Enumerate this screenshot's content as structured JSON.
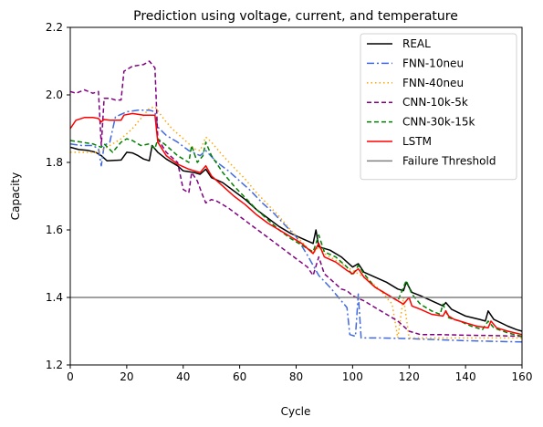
{
  "chart_data": {
    "type": "line",
    "title": "Prediction using voltage, current, and temperature",
    "xlabel": "Cycle",
    "ylabel": "Capacity",
    "xlim": [
      0,
      160
    ],
    "ylim": [
      1.2,
      2.2
    ],
    "xticks": [
      0,
      20,
      40,
      60,
      80,
      100,
      120,
      140,
      160
    ],
    "yticks": [
      1.2,
      1.4,
      1.6,
      1.8,
      2.0,
      2.2
    ],
    "grid": false,
    "legend_position": "top-right",
    "series": [
      {
        "name": "REAL",
        "color": "#000000",
        "dash": "solid",
        "points": [
          [
            0,
            1.845
          ],
          [
            3,
            1.838
          ],
          [
            6,
            1.836
          ],
          [
            9,
            1.83
          ],
          [
            11,
            1.82
          ],
          [
            13,
            1.805
          ],
          [
            18,
            1.807
          ],
          [
            20,
            1.83
          ],
          [
            22,
            1.828
          ],
          [
            24,
            1.82
          ],
          [
            26,
            1.81
          ],
          [
            28,
            1.805
          ],
          [
            29,
            1.85
          ],
          [
            31,
            1.83
          ],
          [
            34,
            1.81
          ],
          [
            38,
            1.79
          ],
          [
            40,
            1.775
          ],
          [
            44,
            1.77
          ],
          [
            46,
            1.765
          ],
          [
            48,
            1.78
          ],
          [
            50,
            1.755
          ],
          [
            54,
            1.74
          ],
          [
            58,
            1.715
          ],
          [
            62,
            1.69
          ],
          [
            66,
            1.66
          ],
          [
            70,
            1.635
          ],
          [
            74,
            1.61
          ],
          [
            78,
            1.59
          ],
          [
            82,
            1.575
          ],
          [
            86,
            1.56
          ],
          [
            87,
            1.6
          ],
          [
            88,
            1.55
          ],
          [
            92,
            1.54
          ],
          [
            96,
            1.52
          ],
          [
            100,
            1.49
          ],
          [
            102,
            1.5
          ],
          [
            104,
            1.475
          ],
          [
            108,
            1.46
          ],
          [
            112,
            1.445
          ],
          [
            116,
            1.425
          ],
          [
            118,
            1.42
          ],
          [
            119,
            1.445
          ],
          [
            121,
            1.415
          ],
          [
            124,
            1.405
          ],
          [
            128,
            1.39
          ],
          [
            132,
            1.375
          ],
          [
            133,
            1.385
          ],
          [
            135,
            1.365
          ],
          [
            140,
            1.345
          ],
          [
            145,
            1.335
          ],
          [
            147,
            1.33
          ],
          [
            148,
            1.36
          ],
          [
            150,
            1.335
          ],
          [
            155,
            1.315
          ],
          [
            158,
            1.305
          ],
          [
            160,
            1.3
          ]
        ]
      },
      {
        "name": "FNN-10neu",
        "color": "#4169e1",
        "dash": "dashdot",
        "points": [
          [
            0,
            1.855
          ],
          [
            4,
            1.85
          ],
          [
            8,
            1.85
          ],
          [
            10,
            1.84
          ],
          [
            11,
            1.79
          ],
          [
            12,
            1.85
          ],
          [
            14,
            1.86
          ],
          [
            16,
            1.935
          ],
          [
            20,
            1.95
          ],
          [
            24,
            1.955
          ],
          [
            28,
            1.955
          ],
          [
            30,
            1.95
          ],
          [
            31,
            1.905
          ],
          [
            34,
            1.88
          ],
          [
            38,
            1.86
          ],
          [
            42,
            1.835
          ],
          [
            46,
            1.82
          ],
          [
            48,
            1.835
          ],
          [
            52,
            1.8
          ],
          [
            56,
            1.775
          ],
          [
            60,
            1.745
          ],
          [
            64,
            1.715
          ],
          [
            68,
            1.68
          ],
          [
            72,
            1.65
          ],
          [
            76,
            1.615
          ],
          [
            80,
            1.58
          ],
          [
            84,
            1.525
          ],
          [
            88,
            1.465
          ],
          [
            92,
            1.43
          ],
          [
            96,
            1.39
          ],
          [
            98,
            1.37
          ],
          [
            99,
            1.29
          ],
          [
            101,
            1.285
          ],
          [
            102,
            1.41
          ],
          [
            103,
            1.28
          ],
          [
            110,
            1.28
          ],
          [
            120,
            1.278
          ],
          [
            130,
            1.275
          ],
          [
            140,
            1.272
          ],
          [
            150,
            1.27
          ],
          [
            160,
            1.268
          ]
        ]
      },
      {
        "name": "FNN-40neu",
        "color": "#ffa500",
        "dash": "dotted",
        "points": [
          [
            0,
            1.83
          ],
          [
            5,
            1.83
          ],
          [
            10,
            1.83
          ],
          [
            14,
            1.85
          ],
          [
            18,
            1.87
          ],
          [
            22,
            1.9
          ],
          [
            26,
            1.94
          ],
          [
            28,
            1.96
          ],
          [
            30,
            1.965
          ],
          [
            33,
            1.93
          ],
          [
            36,
            1.9
          ],
          [
            40,
            1.87
          ],
          [
            44,
            1.84
          ],
          [
            46,
            1.835
          ],
          [
            48,
            1.875
          ],
          [
            50,
            1.86
          ],
          [
            54,
            1.82
          ],
          [
            58,
            1.785
          ],
          [
            62,
            1.75
          ],
          [
            66,
            1.71
          ],
          [
            70,
            1.675
          ],
          [
            74,
            1.64
          ],
          [
            78,
            1.6
          ],
          [
            82,
            1.565
          ],
          [
            86,
            1.53
          ],
          [
            88,
            1.55
          ],
          [
            90,
            1.53
          ],
          [
            94,
            1.51
          ],
          [
            98,
            1.49
          ],
          [
            102,
            1.47
          ],
          [
            106,
            1.45
          ],
          [
            110,
            1.42
          ],
          [
            114,
            1.38
          ],
          [
            116,
            1.28
          ],
          [
            118,
            1.4
          ],
          [
            120,
            1.28
          ],
          [
            130,
            1.28
          ],
          [
            140,
            1.28
          ],
          [
            150,
            1.28
          ],
          [
            160,
            1.28
          ]
        ]
      },
      {
        "name": "CNN-10k-5k",
        "color": "#800080",
        "dash": "dashed",
        "points": [
          [
            0,
            2.01
          ],
          [
            2,
            2.005
          ],
          [
            5,
            2.015
          ],
          [
            8,
            2.005
          ],
          [
            10,
            2.01
          ],
          [
            11,
            1.85
          ],
          [
            12,
            1.99
          ],
          [
            14,
            1.99
          ],
          [
            16,
            1.985
          ],
          [
            18,
            1.985
          ],
          [
            19,
            2.07
          ],
          [
            22,
            2.085
          ],
          [
            26,
            2.09
          ],
          [
            28,
            2.1
          ],
          [
            30,
            2.08
          ],
          [
            31,
            1.87
          ],
          [
            34,
            1.83
          ],
          [
            38,
            1.8
          ],
          [
            40,
            1.72
          ],
          [
            42,
            1.71
          ],
          [
            43,
            1.77
          ],
          [
            45,
            1.745
          ],
          [
            47,
            1.7
          ],
          [
            48,
            1.68
          ],
          [
            50,
            1.69
          ],
          [
            52,
            1.685
          ],
          [
            56,
            1.665
          ],
          [
            60,
            1.64
          ],
          [
            64,
            1.615
          ],
          [
            68,
            1.59
          ],
          [
            72,
            1.565
          ],
          [
            76,
            1.54
          ],
          [
            80,
            1.515
          ],
          [
            84,
            1.49
          ],
          [
            86,
            1.465
          ],
          [
            88,
            1.52
          ],
          [
            90,
            1.47
          ],
          [
            92,
            1.455
          ],
          [
            94,
            1.44
          ],
          [
            96,
            1.425
          ],
          [
            98,
            1.42
          ],
          [
            100,
            1.405
          ],
          [
            104,
            1.39
          ],
          [
            108,
            1.37
          ],
          [
            112,
            1.35
          ],
          [
            116,
            1.33
          ],
          [
            120,
            1.3
          ],
          [
            124,
            1.29
          ],
          [
            130,
            1.29
          ],
          [
            140,
            1.288
          ],
          [
            150,
            1.287
          ],
          [
            160,
            1.285
          ]
        ]
      },
      {
        "name": "CNN-30k-15k",
        "color": "#008000",
        "dash": "dashed",
        "points": [
          [
            0,
            1.865
          ],
          [
            4,
            1.86
          ],
          [
            8,
            1.855
          ],
          [
            11,
            1.845
          ],
          [
            12,
            1.855
          ],
          [
            15,
            1.83
          ],
          [
            18,
            1.86
          ],
          [
            20,
            1.87
          ],
          [
            22,
            1.865
          ],
          [
            25,
            1.85
          ],
          [
            28,
            1.855
          ],
          [
            30,
            1.84
          ],
          [
            31,
            1.87
          ],
          [
            34,
            1.85
          ],
          [
            38,
            1.82
          ],
          [
            42,
            1.8
          ],
          [
            43,
            1.85
          ],
          [
            45,
            1.8
          ],
          [
            47,
            1.82
          ],
          [
            48,
            1.86
          ],
          [
            50,
            1.82
          ],
          [
            54,
            1.77
          ],
          [
            58,
            1.73
          ],
          [
            62,
            1.695
          ],
          [
            66,
            1.66
          ],
          [
            70,
            1.63
          ],
          [
            74,
            1.6
          ],
          [
            78,
            1.575
          ],
          [
            82,
            1.555
          ],
          [
            86,
            1.535
          ],
          [
            88,
            1.585
          ],
          [
            90,
            1.535
          ],
          [
            94,
            1.52
          ],
          [
            98,
            1.49
          ],
          [
            100,
            1.465
          ],
          [
            102,
            1.495
          ],
          [
            104,
            1.47
          ],
          [
            106,
            1.45
          ],
          [
            108,
            1.43
          ],
          [
            112,
            1.41
          ],
          [
            116,
            1.39
          ],
          [
            118,
            1.43
          ],
          [
            119,
            1.45
          ],
          [
            121,
            1.41
          ],
          [
            124,
            1.38
          ],
          [
            128,
            1.36
          ],
          [
            131,
            1.35
          ],
          [
            132,
            1.38
          ],
          [
            134,
            1.34
          ],
          [
            138,
            1.33
          ],
          [
            142,
            1.315
          ],
          [
            146,
            1.305
          ],
          [
            148,
            1.33
          ],
          [
            150,
            1.31
          ],
          [
            155,
            1.295
          ],
          [
            160,
            1.285
          ]
        ]
      },
      {
        "name": "LSTM",
        "color": "#ff0000",
        "dash": "solid",
        "points": [
          [
            0,
            1.9
          ],
          [
            2,
            1.925
          ],
          [
            5,
            1.933
          ],
          [
            8,
            1.933
          ],
          [
            10,
            1.93
          ],
          [
            11,
            1.92
          ],
          [
            12,
            1.927
          ],
          [
            14,
            1.925
          ],
          [
            18,
            1.925
          ],
          [
            19,
            1.94
          ],
          [
            22,
            1.945
          ],
          [
            26,
            1.94
          ],
          [
            30,
            1.94
          ],
          [
            31,
            1.86
          ],
          [
            34,
            1.82
          ],
          [
            38,
            1.795
          ],
          [
            42,
            1.78
          ],
          [
            44,
            1.775
          ],
          [
            46,
            1.77
          ],
          [
            48,
            1.79
          ],
          [
            50,
            1.76
          ],
          [
            54,
            1.73
          ],
          [
            58,
            1.7
          ],
          [
            62,
            1.675
          ],
          [
            66,
            1.645
          ],
          [
            70,
            1.62
          ],
          [
            74,
            1.6
          ],
          [
            78,
            1.58
          ],
          [
            82,
            1.56
          ],
          [
            86,
            1.53
          ],
          [
            88,
            1.56
          ],
          [
            90,
            1.52
          ],
          [
            94,
            1.505
          ],
          [
            98,
            1.48
          ],
          [
            100,
            1.47
          ],
          [
            102,
            1.485
          ],
          [
            104,
            1.46
          ],
          [
            106,
            1.445
          ],
          [
            108,
            1.43
          ],
          [
            112,
            1.41
          ],
          [
            116,
            1.39
          ],
          [
            118,
            1.38
          ],
          [
            120,
            1.4
          ],
          [
            121,
            1.375
          ],
          [
            124,
            1.365
          ],
          [
            128,
            1.35
          ],
          [
            132,
            1.345
          ],
          [
            133,
            1.36
          ],
          [
            134,
            1.345
          ],
          [
            136,
            1.335
          ],
          [
            140,
            1.325
          ],
          [
            144,
            1.315
          ],
          [
            148,
            1.31
          ],
          [
            149,
            1.33
          ],
          [
            151,
            1.31
          ],
          [
            155,
            1.3
          ],
          [
            160,
            1.29
          ]
        ]
      },
      {
        "name": "Failure Threshold",
        "color": "#808080",
        "dash": "solid",
        "points": [
          [
            0,
            1.4
          ],
          [
            160,
            1.4
          ]
        ]
      }
    ]
  }
}
